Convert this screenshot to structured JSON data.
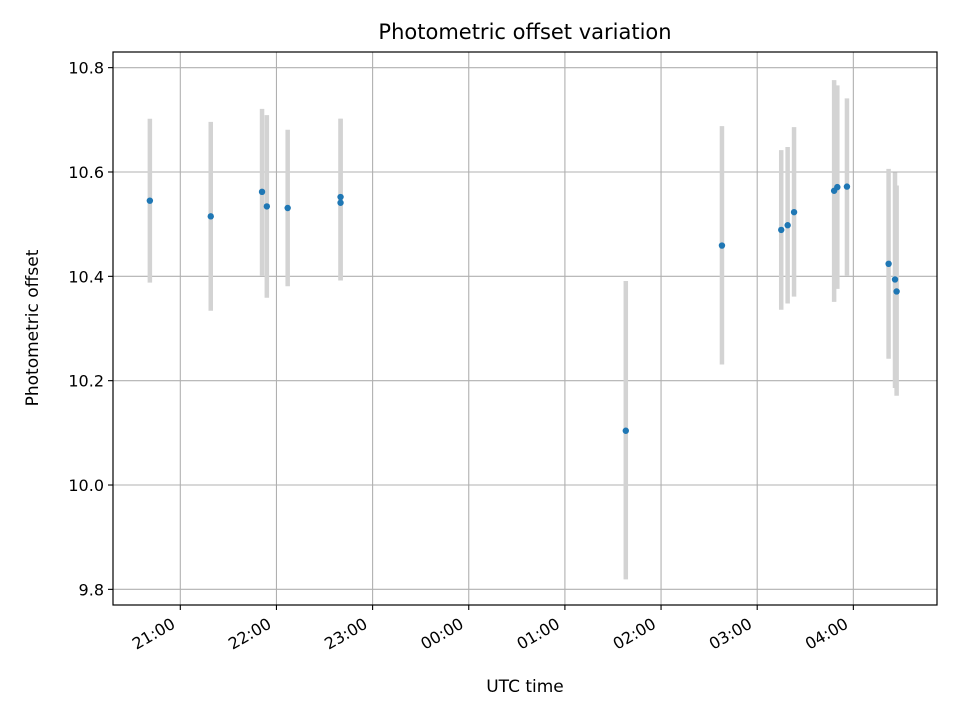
{
  "chart_data": {
    "type": "scatter",
    "title": "Photometric offset variation",
    "xlabel": "UTC time",
    "ylabel": "Photometric offset",
    "x_tick_labels": [
      "21:00",
      "22:00",
      "23:00",
      "00:00",
      "01:00",
      "02:00",
      "03:00",
      "04:00"
    ],
    "y_tick_labels": [
      "9.8",
      "10.0",
      "10.2",
      "10.4",
      "10.6",
      "10.8"
    ],
    "y_ticks": [
      9.8,
      10.0,
      10.2,
      10.4,
      10.6,
      10.8
    ],
    "x_ticks_hours": [
      21,
      22,
      23,
      24,
      25,
      26,
      27,
      28
    ],
    "xlim_hours": [
      20.3,
      28.87
    ],
    "ylim": [
      9.77,
      10.83
    ],
    "grid": true,
    "colors": {
      "point": "#1f77b4",
      "errorbar": "#d3d3d3",
      "grid": "#b0b0b0",
      "axis": "#000000"
    },
    "points": [
      {
        "t": "20:41",
        "y": 10.545,
        "lo": 10.388,
        "hi": 10.702
      },
      {
        "t": "21:19",
        "y": 10.515,
        "lo": 10.334,
        "hi": 10.696
      },
      {
        "t": "21:51",
        "y": 10.562,
        "lo": 10.401,
        "hi": 10.721
      },
      {
        "t": "21:54",
        "y": 10.534,
        "lo": 10.359,
        "hi": 10.709
      },
      {
        "t": "22:07",
        "y": 10.531,
        "lo": 10.381,
        "hi": 10.681
      },
      {
        "t": "22:40",
        "y": 10.552,
        "lo": 10.392,
        "hi": 10.702
      },
      {
        "t": "22:40",
        "y": 10.541,
        "lo": 10.392,
        "hi": 10.702
      },
      {
        "t": "01:38",
        "y": 10.104,
        "lo": 9.819,
        "hi": 10.391
      },
      {
        "t": "02:38",
        "y": 10.459,
        "lo": 10.231,
        "hi": 10.688
      },
      {
        "t": "03:15",
        "y": 10.489,
        "lo": 10.336,
        "hi": 10.642
      },
      {
        "t": "03:19",
        "y": 10.498,
        "lo": 10.348,
        "hi": 10.648
      },
      {
        "t": "03:23",
        "y": 10.523,
        "lo": 10.361,
        "hi": 10.686
      },
      {
        "t": "03:48",
        "y": 10.564,
        "lo": 10.351,
        "hi": 10.776
      },
      {
        "t": "03:50",
        "y": 10.571,
        "lo": 10.376,
        "hi": 10.766
      },
      {
        "t": "03:56",
        "y": 10.572,
        "lo": 10.401,
        "hi": 10.741
      },
      {
        "t": "04:22",
        "y": 10.424,
        "lo": 10.242,
        "hi": 10.606
      },
      {
        "t": "04:26",
        "y": 10.394,
        "lo": 10.186,
        "hi": 10.599
      },
      {
        "t": "04:27",
        "y": 10.371,
        "lo": 10.171,
        "hi": 10.574
      }
    ]
  }
}
